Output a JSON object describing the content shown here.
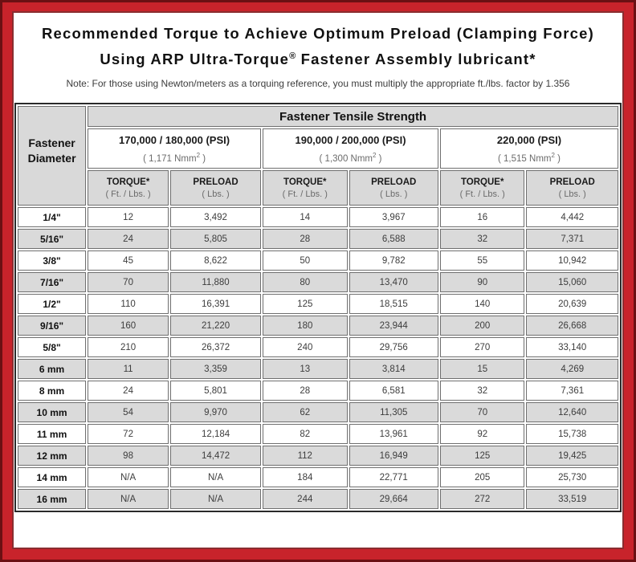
{
  "colors": {
    "frame_red": "#c8232b",
    "frame_dark": "#6b1013",
    "header_gray": "#d9d9d9",
    "row_gray": "#dadada",
    "cell_border": "#6f6f6f",
    "data_text": "#3d3d3d",
    "sub_text": "#6b6b6b"
  },
  "title": {
    "line1": "Recommended Torque to Achieve Optimum Preload (Clamping Force)",
    "line2_pre": "Using ARP Ultra-Torque",
    "line2_reg": "®",
    "line2_post": " Fastener Assembly lubricant*"
  },
  "note": "Note: For those using Newton/meters as a torquing reference, you must multiply the appropriate ft./lbs. factor by 1.356",
  "table": {
    "corner": {
      "line1": "Fastener",
      "line2": "Diameter"
    },
    "tensile_header": "Fastener Tensile Strength",
    "groups": [
      {
        "psi": "170,000 / 180,000 (PSI)",
        "nmm_pre": "( 1,171 Nmm",
        "nmm_sup": "2",
        "nmm_post": " )"
      },
      {
        "psi": "190,000 / 200,000 (PSI)",
        "nmm_pre": "( 1,300 Nmm",
        "nmm_sup": "2",
        "nmm_post": " )"
      },
      {
        "psi": "220,000 (PSI)",
        "nmm_pre": "( 1,515 Nmm",
        "nmm_sup": "2",
        "nmm_post": " )"
      }
    ],
    "col_headers": {
      "torque": "TORQUE*",
      "torque_sub": "( Ft. / Lbs. )",
      "preload": "PRELOAD",
      "preload_sub": "( Lbs. )"
    },
    "rows": [
      {
        "dia": "1/4\"",
        "values": [
          "12",
          "3,492",
          "14",
          "3,967",
          "16",
          "4,442"
        ]
      },
      {
        "dia": "5/16\"",
        "values": [
          "24",
          "5,805",
          "28",
          "6,588",
          "32",
          "7,371"
        ]
      },
      {
        "dia": "3/8\"",
        "values": [
          "45",
          "8,622",
          "50",
          "9,782",
          "55",
          "10,942"
        ]
      },
      {
        "dia": "7/16\"",
        "values": [
          "70",
          "11,880",
          "80",
          "13,470",
          "90",
          "15,060"
        ]
      },
      {
        "dia": "1/2\"",
        "values": [
          "110",
          "16,391",
          "125",
          "18,515",
          "140",
          "20,639"
        ]
      },
      {
        "dia": "9/16\"",
        "values": [
          "160",
          "21,220",
          "180",
          "23,944",
          "200",
          "26,668"
        ]
      },
      {
        "dia": "5/8\"",
        "values": [
          "210",
          "26,372",
          "240",
          "29,756",
          "270",
          "33,140"
        ]
      },
      {
        "dia": "6 mm",
        "values": [
          "11",
          "3,359",
          "13",
          "3,814",
          "15",
          "4,269"
        ]
      },
      {
        "dia": "8 mm",
        "values": [
          "24",
          "5,801",
          "28",
          "6,581",
          "32",
          "7,361"
        ]
      },
      {
        "dia": "10 mm",
        "values": [
          "54",
          "9,970",
          "62",
          "11,305",
          "70",
          "12,640"
        ]
      },
      {
        "dia": "11 mm",
        "values": [
          "72",
          "12,184",
          "82",
          "13,961",
          "92",
          "15,738"
        ]
      },
      {
        "dia": "12 mm",
        "values": [
          "98",
          "14,472",
          "112",
          "16,949",
          "125",
          "19,425"
        ]
      },
      {
        "dia": "14 mm",
        "values": [
          "N/A",
          "N/A",
          "184",
          "22,771",
          "205",
          "25,730"
        ]
      },
      {
        "dia": "16 mm",
        "values": [
          "N/A",
          "N/A",
          "244",
          "29,664",
          "272",
          "33,519"
        ]
      }
    ]
  }
}
